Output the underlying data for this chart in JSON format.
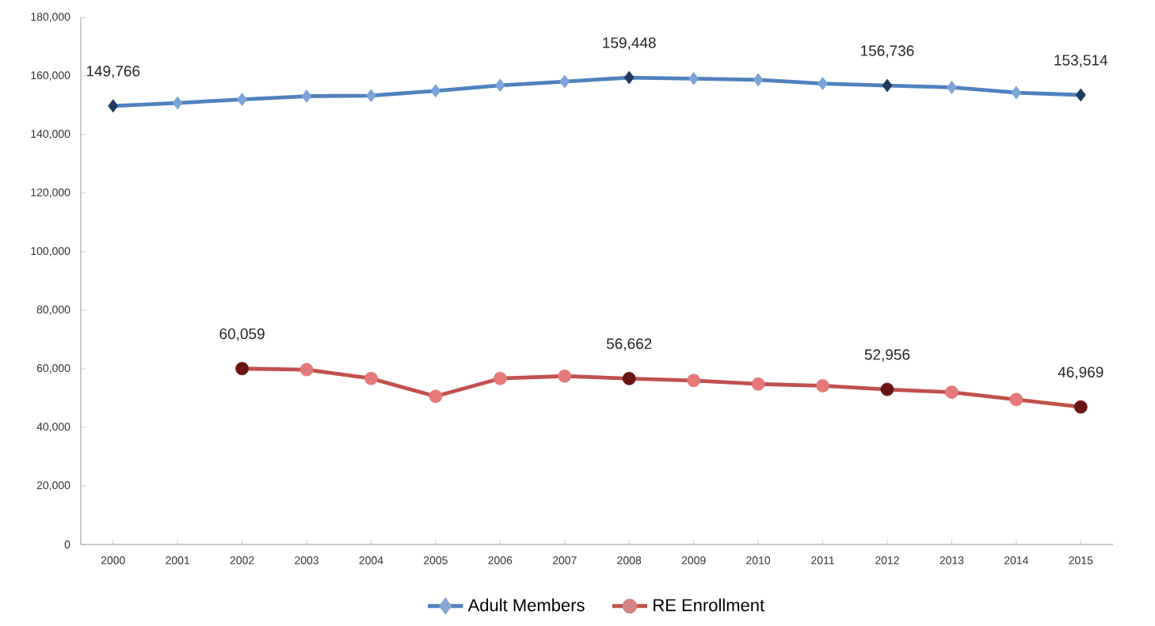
{
  "chart_data": {
    "type": "line",
    "categories": [
      "2000",
      "2001",
      "2002",
      "2003",
      "2004",
      "2005",
      "2006",
      "2007",
      "2008",
      "2009",
      "2010",
      "2011",
      "2012",
      "2013",
      "2014",
      "2015"
    ],
    "series": [
      {
        "name": "Adult Members",
        "color": "#4f81bd",
        "marker": "diamond",
        "colors": [
          "#1f3a5f",
          "#7ba3d8",
          "#7ba3d8",
          "#7ba3d8",
          "#7ba3d8",
          "#7ba3d8",
          "#7ba3d8",
          "#7ba3d8",
          "#1f3a5f",
          "#7ba3d8",
          "#7ba3d8",
          "#7ba3d8",
          "#1f3a5f",
          "#7ba3d8",
          "#7ba3d8",
          "#1f3a5f"
        ],
        "values": [
          149766,
          150800,
          152000,
          153100,
          153300,
          154900,
          156800,
          158100,
          159448,
          159100,
          158700,
          157400,
          156736,
          156100,
          154300,
          153514
        ],
        "value_labels": [
          "149,766",
          null,
          null,
          null,
          null,
          null,
          null,
          null,
          "159,448",
          null,
          null,
          null,
          "156,736",
          null,
          null,
          "153,514"
        ]
      },
      {
        "name": "RE Enrollment",
        "color": "#c0504d",
        "marker": "circle",
        "colors": [
          null,
          null,
          "#6b1414",
          "#e57878",
          "#e57878",
          "#e57878",
          "#e57878",
          "#e57878",
          "#6b1414",
          "#e57878",
          "#e57878",
          "#e57878",
          "#6b1414",
          "#e57878",
          "#e57878",
          "#6b1414"
        ],
        "values": [
          null,
          null,
          60059,
          59700,
          56700,
          50600,
          56700,
          57500,
          56662,
          56000,
          54800,
          54200,
          52956,
          52000,
          49500,
          46969
        ],
        "value_labels": [
          null,
          null,
          "60,059",
          null,
          null,
          null,
          null,
          null,
          "56,662",
          null,
          null,
          null,
          "52,956",
          null,
          null,
          "46,969"
        ]
      }
    ],
    "ylim": [
      0,
      180000
    ],
    "yticks": [
      {
        "value": 0,
        "label": "0"
      },
      {
        "value": 20000,
        "label": "20,000"
      },
      {
        "value": 40000,
        "label": "40,000"
      },
      {
        "value": 60000,
        "label": "60,000"
      },
      {
        "value": 80000,
        "label": "80,000"
      },
      {
        "value": 100000,
        "label": "100,000"
      },
      {
        "value": 120000,
        "label": "120,000"
      },
      {
        "value": 140000,
        "label": "140,000"
      },
      {
        "value": 160000,
        "label": "160,000"
      },
      {
        "value": 180000,
        "label": "180,000"
      }
    ],
    "grid": false,
    "legend": "bottom",
    "line_style": "solid"
  }
}
